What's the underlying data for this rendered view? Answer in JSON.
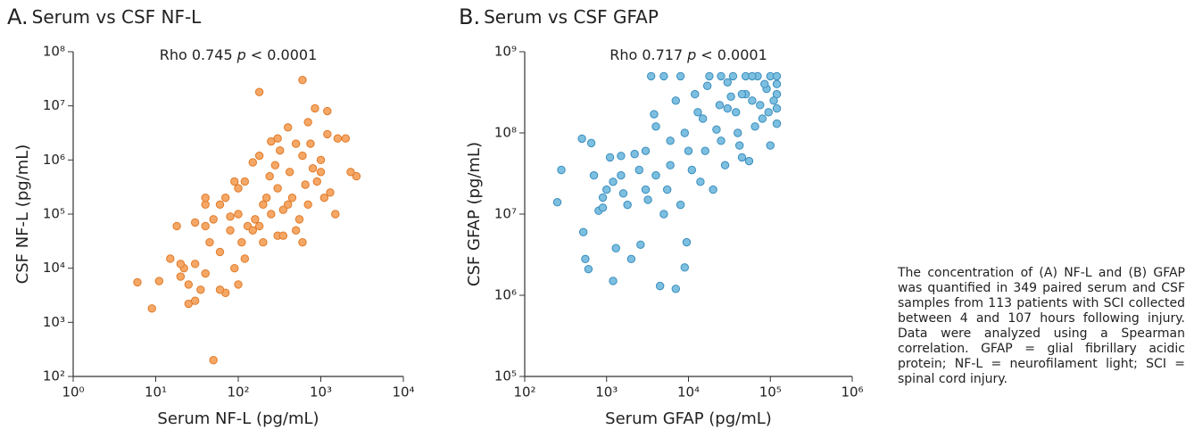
{
  "chart_data": [
    {
      "type": "scatter",
      "panel": "A.",
      "title": "Serum vs CSF NF-L",
      "xlabel": "Serum NF-L (pg/mL)",
      "ylabel": "CSF NF-L (pg/mL)",
      "annotation": {
        "prefix": "Rho 0.745",
        "italic": "p",
        "suffix": "< 0.0001"
      },
      "log_x": true,
      "log_y": true,
      "color": "#f5a766",
      "edge_color": "#e07a28",
      "xlim": [
        1,
        10000
      ],
      "xticks": [
        {
          "value": 1,
          "label": "10⁰"
        },
        {
          "value": 10,
          "label": "10¹"
        },
        {
          "value": 100,
          "label": "10²"
        },
        {
          "value": 1000,
          "label": "10³"
        },
        {
          "value": 10000,
          "label": "10⁴"
        }
      ],
      "ylim": [
        100,
        100000000
      ],
      "yticks": [
        {
          "value": 100,
          "label": "10²"
        },
        {
          "value": 1000,
          "label": "10³"
        },
        {
          "value": 10000,
          "label": "10⁴"
        },
        {
          "value": 100000,
          "label": "10⁵"
        },
        {
          "value": 1000000,
          "label": "10⁶"
        },
        {
          "value": 10000000,
          "label": "10⁷"
        },
        {
          "value": 100000000,
          "label": "10⁸"
        }
      ],
      "x": [
        6,
        9,
        50,
        11,
        15,
        18,
        20,
        25,
        30,
        22,
        40,
        180,
        600,
        1200,
        2000,
        2700,
        2300,
        1500,
        1000,
        800,
        500,
        300,
        400,
        700,
        100,
        150,
        120,
        200,
        250,
        80,
        60,
        40,
        35,
        70,
        90,
        110,
        130,
        160,
        220,
        300,
        350,
        450,
        550,
        650,
        900,
        1100,
        1300,
        700,
        500,
        300,
        200,
        150,
        100,
        80,
        60,
        50,
        45,
        30,
        25,
        20,
        40,
        70,
        90,
        180,
        240,
        280,
        320,
        420,
        600,
        750,
        1000,
        1200,
        850,
        1600,
        400,
        350,
        600,
        120,
        100,
        60,
        180,
        250,
        40,
        30
      ],
      "values": [
        5500,
        1800,
        200,
        5800,
        15000,
        60000,
        7000,
        2200,
        2500,
        10000,
        150000,
        18000000,
        30000000,
        8000000,
        2500000,
        500000,
        600000,
        100000,
        1000000,
        700000,
        2000000,
        2500000,
        4000000,
        5000000,
        300000,
        900000,
        400000,
        150000,
        100000,
        50000,
        20000,
        8000,
        4000,
        3500,
        10000,
        30000,
        60000,
        80000,
        200000,
        300000,
        120000,
        200000,
        80000,
        350000,
        400000,
        200000,
        250000,
        150000,
        50000,
        40000,
        30000,
        50000,
        100000,
        90000,
        150000,
        80000,
        30000,
        12000,
        5000,
        12000,
        60000,
        200000,
        400000,
        60000,
        500000,
        800000,
        1500000,
        600000,
        1200000,
        2000000,
        600000,
        3000000,
        9000000,
        2500000,
        150000,
        40000,
        30000,
        15000,
        5000,
        4000,
        1200000,
        2200000,
        200000,
        70000
      ]
    },
    {
      "type": "scatter",
      "panel": "B.",
      "title": "Serum vs CSF GFAP",
      "xlabel": "Serum GFAP (pg/mL)",
      "ylabel": "CSF GFAP (pg/mL)",
      "annotation": {
        "prefix": "Rho 0.717",
        "italic": "p",
        "suffix": "< 0.0001"
      },
      "log_x": true,
      "log_y": true,
      "color": "#7cbfe0",
      "edge_color": "#3a8dbd",
      "xlim": [
        100,
        1000000
      ],
      "xticks": [
        {
          "value": 100,
          "label": "10²"
        },
        {
          "value": 1000,
          "label": "10³"
        },
        {
          "value": 10000,
          "label": "10⁴"
        },
        {
          "value": 100000,
          "label": "10⁵"
        },
        {
          "value": 1000000,
          "label": "10⁶"
        }
      ],
      "ylim": [
        100000,
        1000000000
      ],
      "yticks": [
        {
          "value": 100000,
          "label": "10⁵"
        },
        {
          "value": 1000000,
          "label": "10⁶"
        },
        {
          "value": 10000000,
          "label": "10⁷"
        },
        {
          "value": 100000000,
          "label": "10⁸"
        },
        {
          "value": 1000000000,
          "label": "10⁹"
        }
      ],
      "x": [
        250,
        280,
        500,
        550,
        600,
        520,
        650,
        700,
        800,
        900,
        1000,
        1100,
        1200,
        1300,
        1500,
        1600,
        1800,
        2000,
        2200,
        2600,
        3000,
        3500,
        3800,
        4500,
        5000,
        6000,
        7000,
        8000,
        9000,
        9500,
        10000,
        12000,
        15000,
        18000,
        20000,
        25000,
        30000,
        35000,
        40000,
        45000,
        50000,
        60000,
        70000,
        80000,
        90000,
        100000,
        120000,
        120000,
        120000,
        120000,
        120000,
        5000,
        8000,
        25000,
        50000,
        60000,
        4000,
        6000,
        7000,
        9000,
        11000,
        14000,
        16000,
        22000,
        28000,
        33000,
        38000,
        42000,
        55000,
        65000,
        75000,
        85000,
        95000,
        3000,
        2500,
        4000,
        1500,
        1200,
        900,
        3200,
        5500,
        13000,
        17000,
        24000,
        30000,
        45000,
        110000,
        100000
      ],
      "values": [
        14000000,
        35000000,
        85000000,
        2800000,
        2100000,
        6000000,
        75000000,
        30000000,
        11000000,
        16000000,
        20000000,
        50000000,
        1500000,
        3800000,
        30000000,
        18000000,
        13000000,
        2800000,
        55000000,
        4200000,
        20000000,
        500000000,
        170000000,
        1300000,
        10000000,
        40000000,
        1200000,
        13000000,
        2200000,
        4500000,
        60000000,
        300000000,
        150000000,
        500000000,
        20000000,
        80000000,
        200000000,
        500000000,
        100000000,
        50000000,
        300000000,
        250000000,
        500000000,
        150000000,
        350000000,
        500000000,
        500000000,
        400000000,
        300000000,
        200000000,
        130000000,
        500000000,
        500000000,
        500000000,
        500000000,
        500000000,
        120000000,
        80000000,
        250000000,
        100000000,
        35000000,
        25000000,
        60000000,
        110000000,
        40000000,
        280000000,
        180000000,
        70000000,
        45000000,
        120000000,
        220000000,
        400000000,
        180000000,
        60000000,
        35000000,
        30000000,
        52000000,
        25000000,
        12000000,
        15000000,
        20000000,
        180000000,
        380000000,
        220000000,
        420000000,
        300000000,
        250000000,
        70000000
      ]
    }
  ],
  "caption": "The concentration of (A) NF-L and (B) GFAP was quantified in 349 paired serum and CSF samples from 113 patients with SCI collected between 4 and 107 hours following injury. Data were analyzed using a Spearman correlation. GFAP = glial fibrillary acidic protein; NF-L = neurofilament light; SCI = spinal cord injury."
}
